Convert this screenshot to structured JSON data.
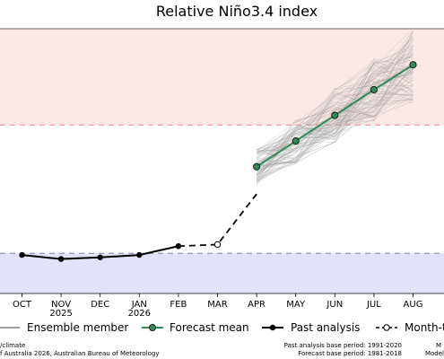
{
  "chart_data": {
    "type": "line",
    "title": "Relative Niño3.4 index",
    "x_categories": [
      "OCT",
      "NOV",
      "DEC",
      "JAN",
      "FEB",
      "MAR",
      "APR",
      "MAY",
      "JUN",
      "JUL",
      "AUG"
    ],
    "year_labels": [
      {
        "category": "NOV",
        "label": "2025"
      },
      {
        "category": "JAN",
        "label": "2026"
      }
    ],
    "ylim": [
      -1.3,
      2.0
    ],
    "threshold_upper": 0.8,
    "threshold_lower": -0.8,
    "grid": false,
    "legend_position": "bottom",
    "past_analysis": {
      "name": "Past analysis",
      "x": [
        "OCT",
        "NOV",
        "DEC",
        "JAN",
        "FEB"
      ],
      "values": [
        -0.82,
        -0.87,
        -0.85,
        -0.82,
        -0.71
      ]
    },
    "month_to_date": {
      "name": "Month-to-date",
      "x": [
        "FEB",
        "MAR",
        "APR"
      ],
      "values": [
        -0.71,
        -0.69,
        -0.06
      ]
    },
    "forecast_mean": {
      "name": "Forecast mean",
      "x": [
        "APR",
        "MAY",
        "JUN",
        "JUL",
        "AUG"
      ],
      "values": [
        0.28,
        0.6,
        0.92,
        1.24,
        1.55
      ]
    },
    "ensemble_member": {
      "name": "Ensemble member",
      "x": [
        "APR",
        "MAY",
        "JUN",
        "JUL",
        "AUG"
      ],
      "count": 100
    }
  },
  "legend": {
    "ensemble_member": "Ensemble member",
    "forecast_mean": "Forecast mean",
    "past_analysis": "Past analysis",
    "month_to_date": "Month-to"
  },
  "footer": {
    "left_line1": "/climate",
    "left_line2": "f Australia 2026, Australian Bureau of Meteorology",
    "right_line1": "Past analysis base period: 1991-2020",
    "right_line2": "Forecast base period: 1981-2018",
    "far_right_line1": "M",
    "far_right_line2": "Model"
  },
  "colors": {
    "upper_band": "#fde8e8",
    "lower_band": "#e2e2fb",
    "upper_threshold": "#f4a3a3",
    "lower_threshold": "#9a9ac4",
    "forecast_mean": "#2e8b57",
    "ensemble": "#9e9e9e",
    "past": "#000000"
  }
}
